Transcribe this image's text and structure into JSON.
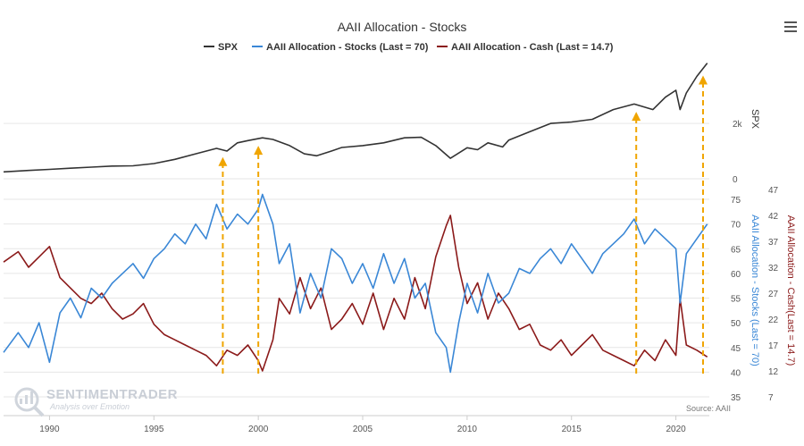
{
  "chart_data": {
    "type": "line",
    "title": "AAII Allocation - Stocks",
    "legend": [
      {
        "name": "SPX",
        "color": "#333333"
      },
      {
        "name": "AAII Allocation - Stocks (Last = 70)",
        "color": "#3a87d6"
      },
      {
        "name": "AAII Allocation - Cash (Last = 14.7)",
        "color": "#8b1a1a"
      }
    ],
    "x_range": [
      1987.8,
      2021.6
    ],
    "x_ticks": [
      "1990",
      "1995",
      "2000",
      "2005",
      "2010",
      "2015",
      "2020"
    ],
    "spx_axis": {
      "title": "SPX",
      "ticks": [
        "0",
        "2k"
      ],
      "range": [
        0,
        4200
      ]
    },
    "stocks_axis": {
      "title": "AAII Allocation - Stocks (Last = 70)",
      "ticks": [
        "35",
        "40",
        "45",
        "50",
        "55",
        "60",
        "65",
        "70",
        "75"
      ],
      "range": [
        35,
        77
      ]
    },
    "cash_axis": {
      "title": "AAII Allocation - Cash(Last = 14.7)",
      "ticks": [
        "7",
        "12",
        "17",
        "22",
        "27",
        "32",
        "37",
        "42",
        "47"
      ],
      "range": [
        7,
        47
      ]
    },
    "series": [
      {
        "name": "SPX",
        "x": [
          1987.8,
          1989,
          1990,
          1991,
          1992,
          1993,
          1994,
          1995,
          1996,
          1997,
          1998,
          1998.5,
          1999,
          1999.5,
          2000.2,
          2000.7,
          2001.5,
          2002.2,
          2002.8,
          2003.5,
          2004,
          2005,
          2006,
          2007,
          2007.8,
          2008.5,
          2009.2,
          2010,
          2010.5,
          2011,
          2011.7,
          2012,
          2013,
          2014,
          2015,
          2016,
          2017,
          2018,
          2018.9,
          2019.5,
          2020,
          2020.2,
          2020.5,
          2021,
          2021.5
        ],
        "values": [
          250,
          300,
          340,
          380,
          420,
          460,
          470,
          550,
          700,
          900,
          1100,
          1000,
          1300,
          1380,
          1480,
          1420,
          1200,
          900,
          830,
          1000,
          1130,
          1200,
          1300,
          1480,
          1500,
          1200,
          740,
          1120,
          1050,
          1300,
          1150,
          1400,
          1700,
          2000,
          2050,
          2150,
          2500,
          2700,
          2500,
          2950,
          3200,
          2500,
          3100,
          3700,
          4180
        ]
      },
      {
        "name": "AAII Allocation - Stocks (Last = 70)",
        "x": [
          1987.8,
          1988.5,
          1989,
          1989.5,
          1990,
          1990.5,
          1991,
          1991.5,
          1992,
          1992.5,
          1993,
          1993.5,
          1994,
          1994.5,
          1995,
          1995.5,
          1996,
          1996.5,
          1997,
          1997.5,
          1998,
          1998.5,
          1999,
          1999.5,
          2000,
          2000.2,
          2000.7,
          2001,
          2001.5,
          2002,
          2002.5,
          2003,
          2003.5,
          2004,
          2004.5,
          2005,
          2005.5,
          2006,
          2006.5,
          2007,
          2007.5,
          2008,
          2008.5,
          2009,
          2009.2,
          2009.6,
          2010,
          2010.5,
          2011,
          2011.5,
          2012,
          2012.5,
          2013,
          2013.5,
          2014,
          2014.5,
          2015,
          2015.5,
          2016,
          2016.5,
          2017,
          2017.5,
          2018,
          2018.5,
          2019,
          2019.5,
          2020,
          2020.2,
          2020.5,
          2021,
          2021.5
        ],
        "values": [
          44,
          48,
          45,
          50,
          42,
          52,
          55,
          51,
          57,
          55,
          58,
          60,
          62,
          59,
          63,
          65,
          68,
          66,
          70,
          67,
          74,
          69,
          72,
          70,
          73,
          76,
          70,
          62,
          66,
          52,
          60,
          55,
          65,
          63,
          58,
          62,
          57,
          64,
          58,
          63,
          55,
          58,
          48,
          45,
          40,
          50,
          58,
          52,
          60,
          54,
          56,
          61,
          60,
          63,
          65,
          62,
          66,
          63,
          60,
          64,
          66,
          68,
          71,
          66,
          69,
          67,
          65,
          54,
          64,
          67,
          70
        ]
      },
      {
        "name": "AAII Allocation - Cash (Last = 14.7)",
        "x": [
          1987.8,
          1988.5,
          1989,
          1989.5,
          1990,
          1990.5,
          1991,
          1991.5,
          1992,
          1992.5,
          1993,
          1993.5,
          1994,
          1994.5,
          1995,
          1995.5,
          1996,
          1996.5,
          1997,
          1997.5,
          1998,
          1998.5,
          1999,
          1999.5,
          2000,
          2000.2,
          2000.7,
          2001,
          2001.5,
          2002,
          2002.5,
          2003,
          2003.5,
          2004,
          2004.5,
          2005,
          2005.5,
          2006,
          2006.5,
          2007,
          2007.5,
          2008,
          2008.5,
          2009,
          2009.2,
          2009.6,
          2010,
          2010.5,
          2011,
          2011.5,
          2012,
          2012.5,
          2013,
          2013.5,
          2014,
          2014.5,
          2015,
          2015.5,
          2016,
          2016.5,
          2017,
          2017.5,
          2018,
          2018.5,
          2019,
          2019.5,
          2020,
          2020.2,
          2020.5,
          2021,
          2021.5
        ],
        "values": [
          33,
          35,
          32,
          34,
          36,
          30,
          28,
          26,
          25,
          27,
          24,
          22,
          23,
          25,
          21,
          19,
          18,
          17,
          16,
          15,
          13,
          16,
          15,
          17,
          14,
          12,
          18,
          26,
          23,
          30,
          24,
          28,
          20,
          22,
          25,
          21,
          27,
          20,
          26,
          22,
          30,
          24,
          34,
          40,
          42,
          32,
          25,
          29,
          22,
          27,
          24,
          20,
          21,
          17,
          16,
          18,
          15,
          17,
          19,
          16,
          15,
          14,
          13,
          16,
          14,
          18,
          15,
          26,
          17,
          16,
          14.7
        ]
      }
    ],
    "annotations": [
      {
        "type": "dashed-arrow",
        "x": 1998.3
      },
      {
        "type": "dashed-arrow",
        "x": 2000.0
      },
      {
        "type": "dashed-arrow",
        "x": 2018.1
      },
      {
        "type": "dashed-arrow",
        "x": 2021.3
      }
    ],
    "watermark": {
      "brand": "SENTIMENTRADER",
      "tagline": "Analysis over Emotion"
    },
    "source": "Source: AAII"
  }
}
